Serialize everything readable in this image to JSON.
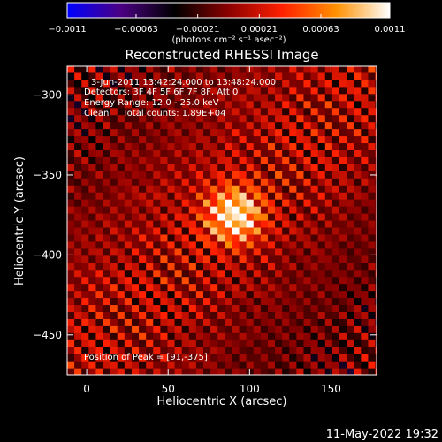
{
  "chart_data": {
    "type": "heatmap",
    "title": "Reconstructed RHESSI Image",
    "xlabel": "Heliocentric X (arcsec)",
    "ylabel": "Heliocentric Y (arcsec)",
    "xlim": [
      -12,
      178
    ],
    "ylim": [
      -475,
      -282
    ],
    "x_ticks": [
      0,
      50,
      100,
      150
    ],
    "x_tick_labels": [
      "0",
      "50",
      "100",
      "150"
    ],
    "y_ticks": [
      -300,
      -350,
      -400,
      -450
    ],
    "y_tick_labels": [
      "−300",
      "−350",
      "−400",
      "−450"
    ],
    "colorbar": {
      "range": [
        -0.0011,
        0.0011
      ],
      "ticks": [
        -0.0011,
        -0.00063,
        -0.00021,
        0.00021,
        0.00063,
        0.0011
      ],
      "tick_labels": [
        "−0.0011",
        "−0.00063",
        "−0.00021",
        "0.00021",
        "0.00063",
        "0.0011"
      ],
      "unit_label": "(photons cm⁻² s⁻¹ asec⁻²)",
      "colors": [
        "#0000ff",
        "#4b0082",
        "#000000",
        "#8b0000",
        "#ff2000",
        "#ff9000",
        "#ffffff"
      ]
    },
    "annotations": [
      "3-Jun-2011 13:42:24.000 to 13:48:24.000",
      "Detectors: 3F 4F 5F 6F 7F 8F, Att 0",
      "Energy Range: 12.0 - 25.0 keV",
      "Clean     Total counts: 1.89E+04"
    ],
    "peak_label": "Position of Peak = [91,-375]",
    "peak": [
      91,
      -375
    ],
    "source_fwhm_arcsec": 12,
    "stripe_angle_deg": 45
  },
  "timestamp": "11-May-2022 19:32"
}
